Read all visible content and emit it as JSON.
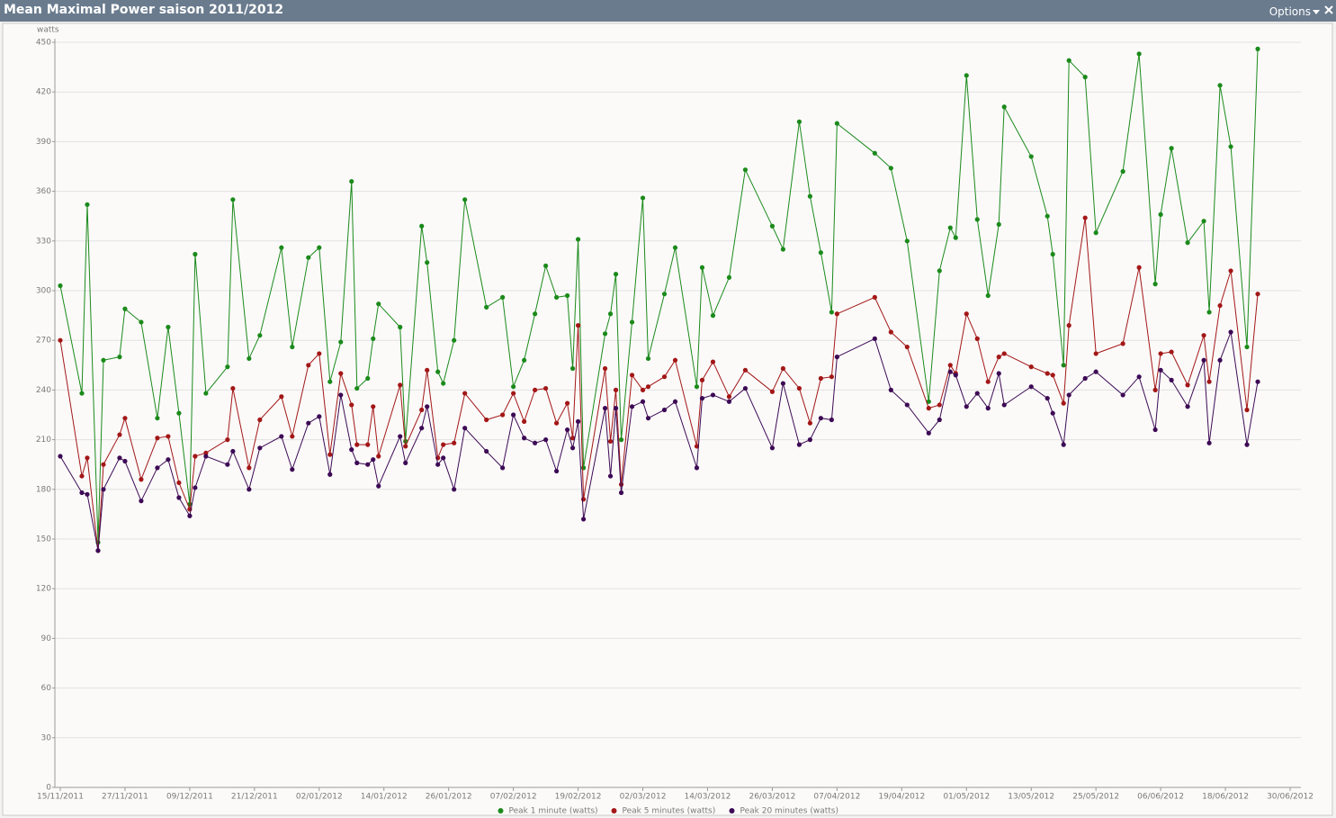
{
  "header": {
    "options": "Options"
  },
  "chart_data": {
    "type": "line",
    "title": "Mean Maximal Power saison 2011/2012",
    "ylabel": "watts",
    "x": [
      "15/11/2011",
      "19/11/2011",
      "20/11/2011",
      "22/11/2011",
      "23/11/2011",
      "26/11/2011",
      "27/11/2011",
      "30/11/2011",
      "03/12/2011",
      "05/12/2011",
      "07/12/2011",
      "09/12/2011",
      "10/12/2011",
      "12/12/2011",
      "16/12/2011",
      "17/12/2011",
      "20/12/2011",
      "22/12/2011",
      "26/12/2011",
      "28/12/2011",
      "31/12/2011",
      "02/01/2012",
      "04/01/2012",
      "06/01/2012",
      "08/01/2012",
      "09/01/2012",
      "11/01/2012",
      "12/01/2012",
      "13/01/2012",
      "17/01/2012",
      "18/01/2012",
      "21/01/2012",
      "22/01/2012",
      "24/01/2012",
      "25/01/2012",
      "27/01/2012",
      "29/01/2012",
      "02/02/2012",
      "05/02/2012",
      "07/02/2012",
      "09/02/2012",
      "11/02/2012",
      "13/02/2012",
      "15/02/2012",
      "17/02/2012",
      "18/02/2012",
      "19/02/2012",
      "20/02/2012",
      "24/02/2012",
      "25/02/2012",
      "26/02/2012",
      "27/02/2012",
      "29/02/2012",
      "02/03/2012",
      "03/03/2012",
      "06/03/2012",
      "08/03/2012",
      "12/03/2012",
      "13/03/2012",
      "15/03/2012",
      "18/03/2012",
      "21/03/2012",
      "26/03/2012",
      "28/03/2012",
      "31/03/2012",
      "02/04/2012",
      "04/04/2012",
      "06/04/2012",
      "07/04/2012",
      "14/04/2012",
      "17/04/2012",
      "20/04/2012",
      "24/04/2012",
      "26/04/2012",
      "28/04/2012",
      "29/04/2012",
      "01/05/2012",
      "03/05/2012",
      "05/05/2012",
      "07/05/2012",
      "08/05/2012",
      "13/05/2012",
      "16/05/2012",
      "17/05/2012",
      "19/05/2012",
      "20/05/2012",
      "23/05/2012",
      "25/05/2012",
      "30/05/2012",
      "02/06/2012",
      "05/06/2012",
      "06/06/2012",
      "08/06/2012",
      "11/06/2012",
      "14/06/2012",
      "15/06/2012",
      "17/06/2012",
      "19/06/2012",
      "22/06/2012",
      "24/06/2012"
    ],
    "series": [
      {
        "name": "Peak 1 minute (watts)",
        "color": "#1b8a1b",
        "values": [
          303,
          238,
          352,
          148,
          258,
          260,
          289,
          281,
          223,
          278,
          226,
          171,
          322,
          238,
          254,
          355,
          259,
          273,
          326,
          266,
          320,
          326,
          245,
          269,
          366,
          241,
          247,
          271,
          292,
          278,
          209,
          339,
          317,
          251,
          244,
          270,
          355,
          290,
          296,
          242,
          258,
          286,
          315,
          296,
          297,
          253,
          331,
          193,
          274,
          286,
          310,
          210,
          281,
          356,
          259,
          298,
          326,
          242,
          314,
          285,
          308,
          373,
          339,
          325,
          402,
          357,
          323,
          287,
          401,
          383,
          374,
          330,
          233,
          312,
          338,
          332,
          430,
          343,
          297,
          340,
          411,
          381,
          345,
          322,
          255,
          439,
          429,
          335,
          372,
          443,
          304,
          346,
          386,
          329,
          342,
          287,
          424,
          387,
          266,
          446
        ]
      },
      {
        "name": "Peak 5 minutes (watts)",
        "color": "#a31717",
        "values": [
          270,
          188,
          199,
          143,
          195,
          213,
          223,
          186,
          211,
          212,
          184,
          168,
          200,
          202,
          210,
          241,
          193,
          222,
          236,
          212,
          255,
          262,
          201,
          250,
          231,
          207,
          207,
          230,
          200,
          243,
          206,
          228,
          252,
          199,
          207,
          208,
          238,
          222,
          225,
          238,
          221,
          240,
          241,
          220,
          232,
          211,
          279,
          174,
          253,
          209,
          240,
          183,
          249,
          240,
          242,
          248,
          258,
          206,
          246,
          257,
          236,
          252,
          239,
          253,
          241,
          220,
          247,
          248,
          286,
          296,
          275,
          266,
          229,
          231,
          255,
          250,
          286,
          271,
          245,
          260,
          262,
          254,
          250,
          249,
          232,
          279,
          344,
          262,
          268,
          314,
          240,
          262,
          263,
          243,
          273,
          245,
          291,
          312,
          228,
          298
        ]
      },
      {
        "name": "Peak 20 minutes (watts)",
        "color": "#3d0a55",
        "values": [
          200,
          178,
          177,
          143,
          180,
          199,
          197,
          173,
          193,
          198,
          175,
          164,
          181,
          200,
          195,
          203,
          180,
          205,
          212,
          192,
          220,
          224,
          189,
          237,
          204,
          196,
          195,
          198,
          182,
          212,
          196,
          217,
          230,
          195,
          199,
          180,
          217,
          203,
          193,
          225,
          211,
          208,
          210,
          191,
          216,
          205,
          221,
          162,
          229,
          188,
          229,
          178,
          230,
          233,
          223,
          228,
          233,
          193,
          235,
          237,
          233,
          241,
          205,
          244,
          207,
          210,
          223,
          222,
          260,
          271,
          240,
          231,
          214,
          222,
          251,
          249,
          230,
          238,
          229,
          250,
          231,
          242,
          235,
          226,
          207,
          237,
          247,
          251,
          237,
          248,
          216,
          252,
          246,
          230,
          258,
          208,
          258,
          275,
          207,
          245
        ]
      }
    ],
    "xlim": [
      "14/11/2011",
      "02/07/2012"
    ],
    "xticks": [
      "15/11/2011",
      "27/11/2011",
      "09/12/2011",
      "21/12/2011",
      "02/01/2012",
      "14/01/2012",
      "26/01/2012",
      "07/02/2012",
      "19/02/2012",
      "02/03/2012",
      "14/03/2012",
      "26/03/2012",
      "07/04/2012",
      "19/04/2012",
      "01/05/2012",
      "13/05/2012",
      "25/05/2012",
      "06/06/2012",
      "18/06/2012",
      "30/06/2012"
    ],
    "ylim": [
      0,
      450
    ],
    "yticks": [
      0,
      30,
      60,
      90,
      120,
      150,
      180,
      210,
      240,
      270,
      300,
      330,
      360,
      390,
      420,
      450
    ],
    "grid": true,
    "legend": "bottom"
  }
}
